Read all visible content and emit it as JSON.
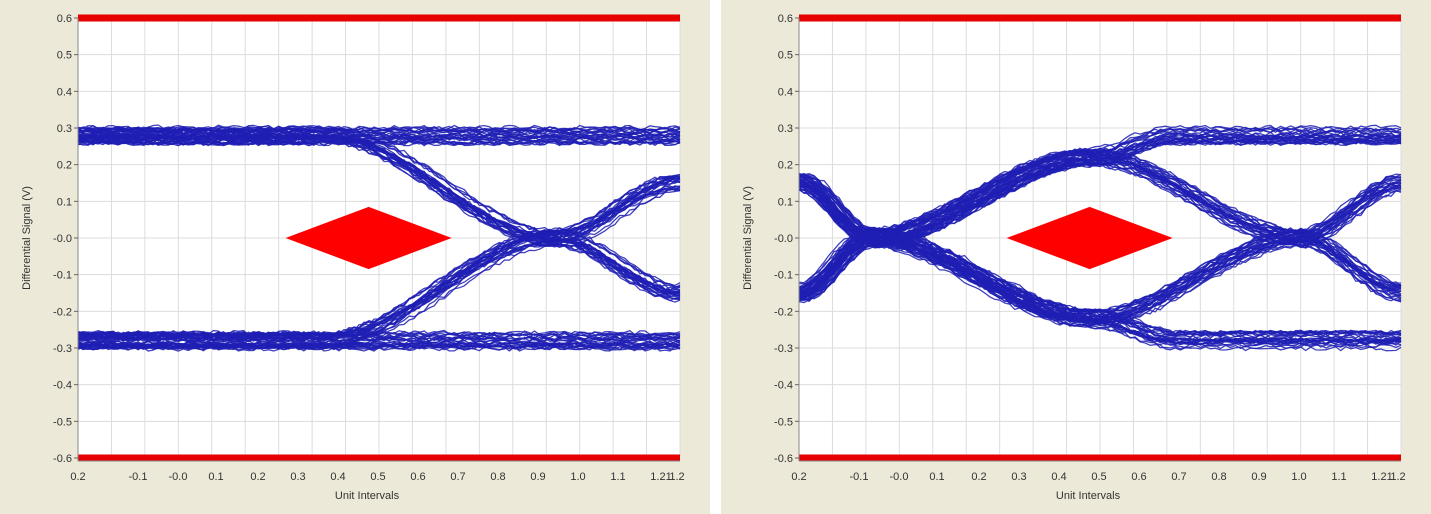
{
  "chart_data": [
    {
      "type": "line",
      "name": "eye-diagram-left",
      "xlabel": "Unit Intervals",
      "ylabel": "Differential Signal (V)",
      "ylim": [
        -0.6,
        0.6
      ],
      "x_ticks": [
        "0.2",
        "-0.1",
        "-0.0",
        "0.1",
        "0.2",
        "0.3",
        "0.4",
        "0.5",
        "0.6",
        "0.7",
        "0.8",
        "0.9",
        "1.0",
        "1.1",
        "1.21",
        "1.2"
      ],
      "y_ticks": [
        "0.6",
        "0.5",
        "0.4",
        "0.3",
        "0.2",
        "0.1",
        "-0.0",
        "-0.1",
        "-0.2",
        "-0.3",
        "-0.4",
        "-0.5",
        "-0.6"
      ],
      "grid": true,
      "colors": {
        "trace": "#1f1fb4",
        "mask": "#ff0000",
        "limit": "#e60000"
      },
      "limit_lines": [
        0.6,
        -0.6
      ],
      "mask": {
        "x": [
          0.3,
          0.5,
          0.7,
          0.5
        ],
        "y": [
          0.0,
          0.085,
          0.0,
          -0.085
        ]
      },
      "traces": [
        {
          "x": [
            -0.2,
            0.4,
            0.95,
            1.25
          ],
          "y": [
            0.28,
            0.28,
            0.0,
            -0.15
          ]
        },
        {
          "x": [
            -0.2,
            0.4,
            0.95,
            1.25
          ],
          "y": [
            -0.28,
            -0.28,
            0.0,
            0.15
          ]
        },
        {
          "x": [
            -0.2,
            1.25
          ],
          "y": [
            0.28,
            0.28
          ]
        },
        {
          "x": [
            -0.2,
            1.25
          ],
          "y": [
            -0.28,
            -0.28
          ]
        }
      ]
    },
    {
      "type": "line",
      "name": "eye-diagram-right",
      "xlabel": "Unit Intervals",
      "ylabel": "Differential Signal (V)",
      "ylim": [
        -0.6,
        0.6
      ],
      "x_ticks": [
        "0.2",
        "-0.1",
        "-0.0",
        "0.1",
        "0.2",
        "0.3",
        "0.4",
        "0.5",
        "0.6",
        "0.7",
        "0.8",
        "0.9",
        "1.0",
        "1.1",
        "1.21",
        "1.2"
      ],
      "y_ticks": [
        "0.6",
        "0.5",
        "0.4",
        "0.3",
        "0.2",
        "0.1",
        "-0.0",
        "-0.1",
        "-0.2",
        "-0.3",
        "-0.4",
        "-0.5",
        "-0.6"
      ],
      "grid": true,
      "colors": {
        "trace": "#1f1fb4",
        "mask": "#ff0000",
        "limit": "#e60000"
      },
      "limit_lines": [
        0.6,
        -0.6
      ],
      "mask": {
        "x": [
          0.3,
          0.5,
          0.7,
          0.5
        ],
        "y": [
          0.0,
          0.085,
          0.0,
          -0.085
        ]
      },
      "traces": [
        {
          "x": [
            -0.2,
            -0.03,
            0.5,
            1.0,
            1.25
          ],
          "y": [
            0.15,
            0.0,
            0.22,
            0.0,
            -0.15
          ]
        },
        {
          "x": [
            -0.2,
            -0.03,
            0.5,
            1.0,
            1.25
          ],
          "y": [
            -0.15,
            0.0,
            -0.22,
            0.0,
            0.15
          ]
        },
        {
          "x": [
            -0.2,
            -0.03,
            0.5,
            0.7,
            1.25
          ],
          "y": [
            0.15,
            0.0,
            -0.22,
            -0.28,
            -0.28
          ]
        },
        {
          "x": [
            -0.2,
            -0.03,
            0.5,
            0.7,
            1.25
          ],
          "y": [
            -0.15,
            0.0,
            0.22,
            0.28,
            0.28
          ]
        }
      ]
    }
  ]
}
